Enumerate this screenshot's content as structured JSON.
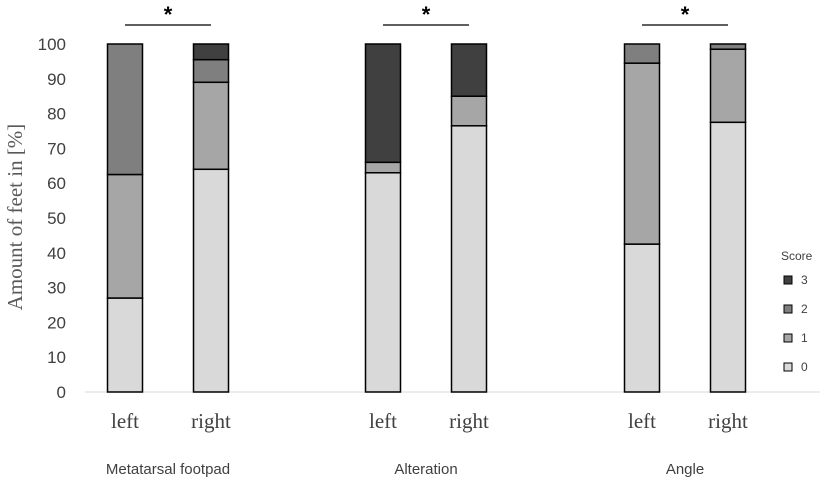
{
  "chart_data": {
    "type": "bar",
    "stacked": true,
    "ylabel": "Amount  of feet in [%]",
    "ylim": [
      0,
      100
    ],
    "yticks": [
      0,
      10,
      20,
      30,
      40,
      50,
      60,
      70,
      80,
      90,
      100
    ],
    "grid": false,
    "legend": {
      "title": "Score",
      "position": "right",
      "entries": [
        "3",
        "2",
        "1",
        "0"
      ]
    },
    "series_order": [
      "0",
      "1",
      "2",
      "3"
    ],
    "series_colors": {
      "0": "#d9d9d9",
      "1": "#a6a6a6",
      "2": "#7f7f7f",
      "3": "#404040"
    },
    "groups": [
      {
        "name": "Metatarsal  footpad",
        "significance": "*",
        "bars": [
          {
            "label": "left",
            "stack": {
              "0": 27,
              "1": 35.5,
              "2": 37.5,
              "3": 0
            }
          },
          {
            "label": "right",
            "stack": {
              "0": 64,
              "1": 25,
              "2": 6.5,
              "3": 4.5
            }
          }
        ]
      },
      {
        "name": "Alteration",
        "significance": "*",
        "bars": [
          {
            "label": "left",
            "stack": {
              "0": 63,
              "1": 3,
              "2": 0,
              "3": 34
            }
          },
          {
            "label": "right",
            "stack": {
              "0": 76.5,
              "1": 8.5,
              "2": 0,
              "3": 15
            }
          }
        ]
      },
      {
        "name": "Angle",
        "significance": "*",
        "bars": [
          {
            "label": "left",
            "stack": {
              "0": 42.5,
              "1": 52,
              "2": 5.5,
              "3": 0
            }
          },
          {
            "label": "right",
            "stack": {
              "0": 77.5,
              "1": 21,
              "2": 1.5,
              "3": 0
            }
          }
        ]
      }
    ]
  }
}
